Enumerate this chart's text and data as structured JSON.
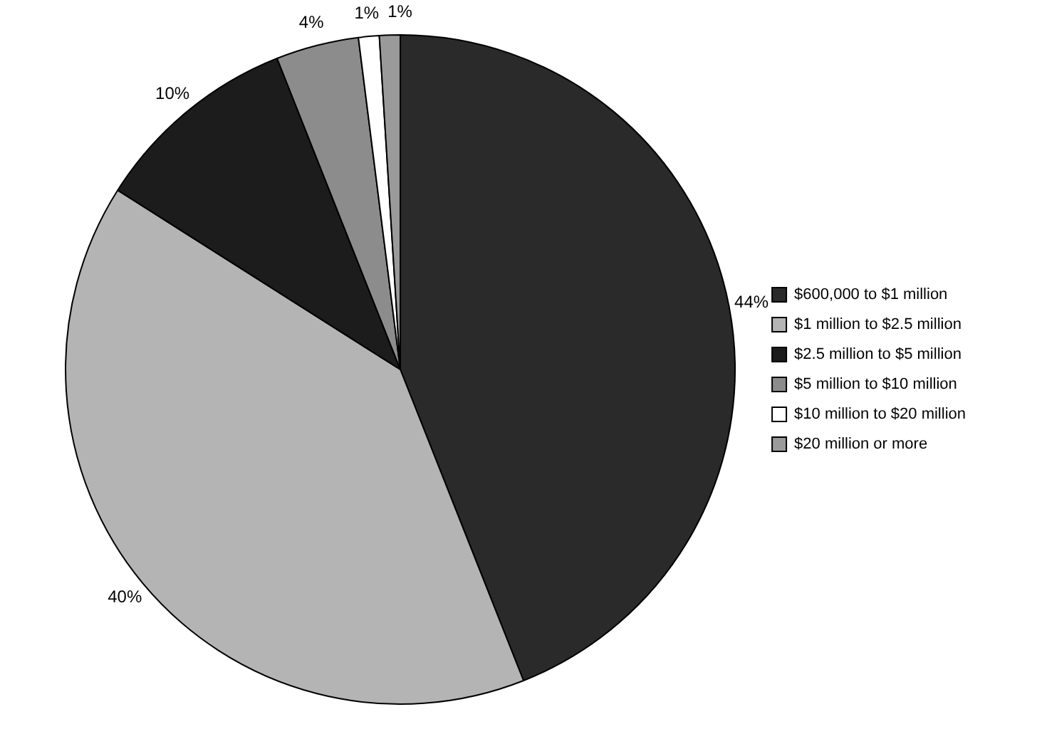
{
  "chart_data": {
    "type": "pie",
    "categories": [
      "$600,000 to $1 million",
      "$1 million to $2.5 million",
      "$2.5 million to $5 million",
      "$5 million to $10 million",
      "$10 million to $20 million",
      "$20 million or more"
    ],
    "values": [
      44,
      40,
      10,
      4,
      1,
      1
    ],
    "value_labels": [
      "44%",
      "40%",
      "10%",
      "4%",
      "1%",
      "1%"
    ],
    "colors": [
      "#2a2a2a",
      "#b4b4b4",
      "#1c1c1c",
      "#8c8c8c",
      "#ffffff",
      "#9a9a9a"
    ],
    "legend": "right"
  }
}
